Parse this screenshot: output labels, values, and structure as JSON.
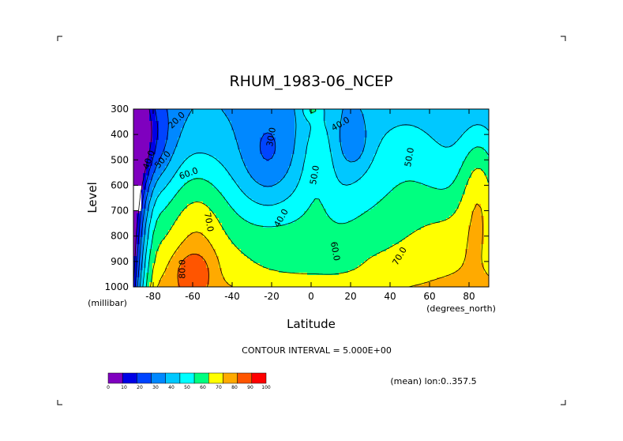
{
  "chart_data": {
    "type": "heatmap",
    "title": "RHUM_1983-06_NCEP",
    "xlabel": "Latitude",
    "ylabel": "Level",
    "x_units": "(degrees_north)",
    "y_units": "(millibar)",
    "x_ticks": [
      "-80",
      "-60",
      "-40",
      "-20",
      "0",
      "20",
      "40",
      "60",
      "80"
    ],
    "y_ticks": [
      "300",
      "400",
      "500",
      "600",
      "700",
      "800",
      "900",
      "1000"
    ],
    "xlim": [
      -90,
      90
    ],
    "ylim": [
      1000,
      300
    ],
    "y_axis_inverted": true,
    "contour_interval_text": "CONTOUR INTERVAL = 5.000E+00",
    "subset_text": "(mean) lon:0..357.5",
    "colorbar": {
      "labels": [
        "0",
        "10",
        "20",
        "30",
        "40",
        "50",
        "60",
        "70",
        "80",
        "90",
        "100"
      ],
      "colors": [
        "#7f00bf",
        "#0000e6",
        "#0044ff",
        "#0088ff",
        "#00c8ff",
        "#00ffff",
        "#00ff80",
        "#ffff00",
        "#ffaa00",
        "#ff5500",
        "#ff0000"
      ]
    },
    "contour_labels": [
      {
        "text": "20.0",
        "lat": -68,
        "lev": 345,
        "rot": -45
      },
      {
        "text": "40.0",
        "lat": -82,
        "lev": 500,
        "rot": -70
      },
      {
        "text": "50.0",
        "lat": -75,
        "lev": 500,
        "rot": -50
      },
      {
        "text": "60.0",
        "lat": -62,
        "lev": 555,
        "rot": -20
      },
      {
        "text": "30.0",
        "lat": -20,
        "lev": 410,
        "rot": -80
      },
      {
        "text": "40.0",
        "lat": -15,
        "lev": 730,
        "rot": -60
      },
      {
        "text": "50.0",
        "lat": 2,
        "lev": 560,
        "rot": -80
      },
      {
        "text": "40.0",
        "lat": 15,
        "lev": 360,
        "rot": -30
      },
      {
        "text": "50.0",
        "lat": 50,
        "lev": 490,
        "rot": -80
      },
      {
        "text": "60.0",
        "lat": 12,
        "lev": 860,
        "rot": 80
      },
      {
        "text": "70.0",
        "lat": 45,
        "lev": 880,
        "rot": -60
      },
      {
        "text": "70.0",
        "lat": -52,
        "lev": 745,
        "rot": 80
      },
      {
        "text": "80.0",
        "lat": -65,
        "lev": 930,
        "rot": -90
      }
    ]
  }
}
